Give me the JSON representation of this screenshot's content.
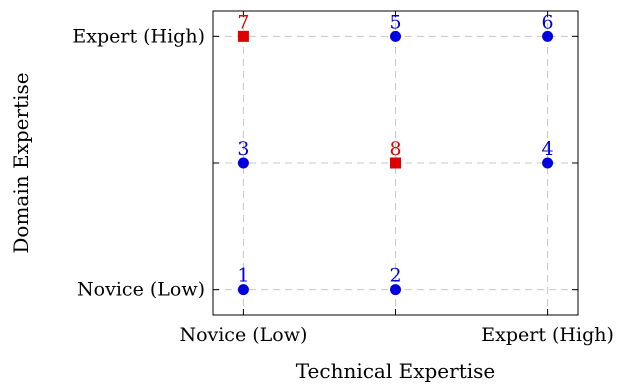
{
  "chart_data": {
    "type": "scatter",
    "title": "",
    "xlabel": "Technical Expertise",
    "ylabel": "Domain Expertise",
    "xlim": [
      0.8,
      3.2
    ],
    "ylim": [
      0.8,
      3.2
    ],
    "x_ticks": [
      {
        "value": 1,
        "label": "Novice (Low)"
      },
      {
        "value": 2,
        "label": ""
      },
      {
        "value": 3,
        "label": "Expert (High)"
      }
    ],
    "y_ticks": [
      {
        "value": 1,
        "label": "Novice (Low)"
      },
      {
        "value": 2,
        "label": ""
      },
      {
        "value": 3,
        "label": "Expert (High)"
      }
    ],
    "grid": true,
    "series": [
      {
        "marker": "circle",
        "color": "#0000dd",
        "points": [
          {
            "label": "1",
            "x": 1,
            "y": 1
          },
          {
            "label": "2",
            "x": 2,
            "y": 1
          },
          {
            "label": "3",
            "x": 1,
            "y": 2
          },
          {
            "label": "4",
            "x": 3,
            "y": 2
          },
          {
            "label": "5",
            "x": 2,
            "y": 3
          },
          {
            "label": "6",
            "x": 3,
            "y": 3
          }
        ]
      },
      {
        "marker": "square",
        "color": "#dd0000",
        "points": [
          {
            "label": "7",
            "x": 1,
            "y": 3
          },
          {
            "label": "8",
            "x": 2,
            "y": 2
          }
        ]
      }
    ]
  }
}
